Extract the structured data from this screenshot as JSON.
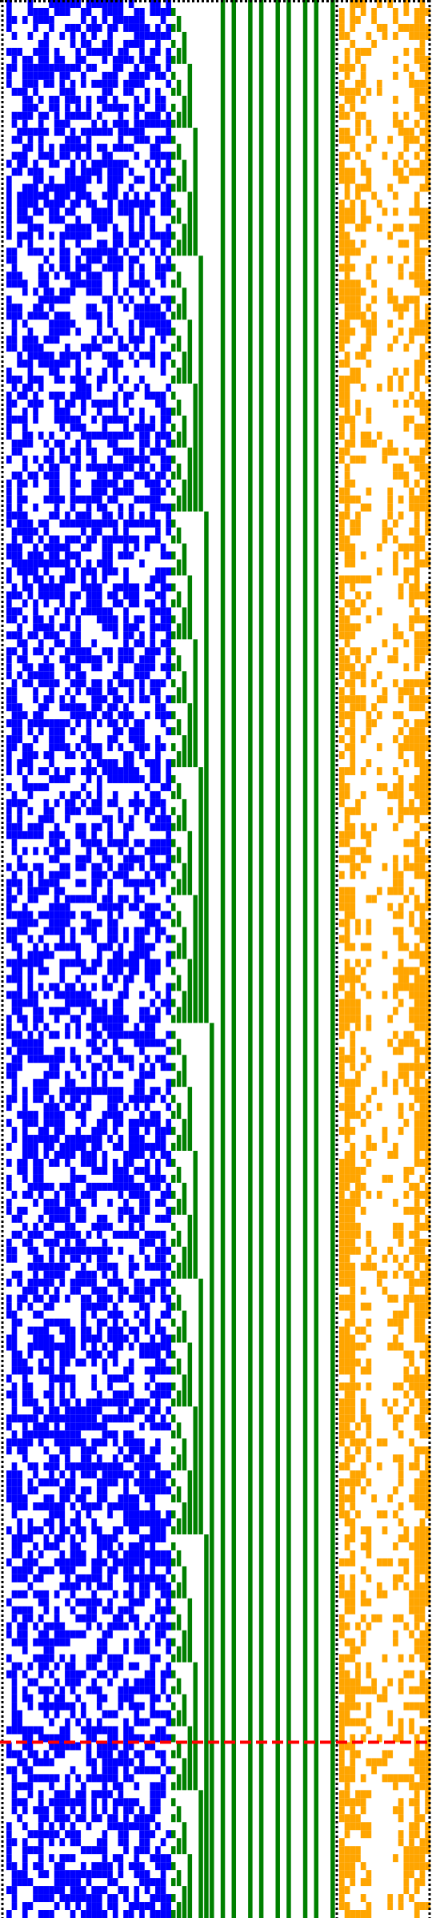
{
  "visualization": {
    "kind": "binary-bit-pattern-strips",
    "rows": 240,
    "panels": [
      {
        "name": "random-bits",
        "color": "#0000ff",
        "columns": 31,
        "density": 0.55
      },
      {
        "name": "counter-bits",
        "color": "#008000",
        "columns": 30,
        "mode": "binary-counter"
      },
      {
        "name": "sparse-bits",
        "color": "#ffa500",
        "columns": 17,
        "density": 0.35
      }
    ],
    "separators": {
      "color": "#000000",
      "style": "dotted"
    },
    "marker_line": {
      "color": "#ff0000",
      "style": "dashed",
      "row": 218
    }
  }
}
